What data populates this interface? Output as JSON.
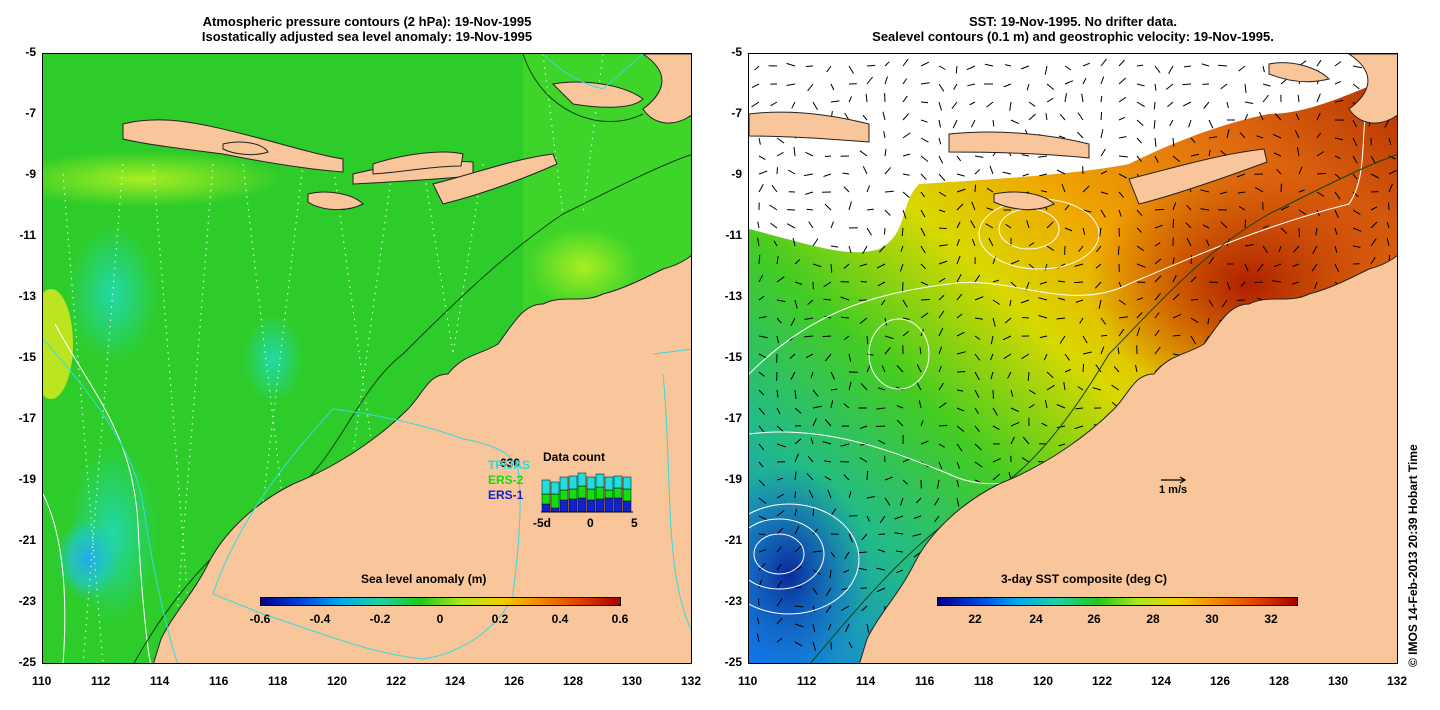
{
  "left_panel": {
    "title_line1": "Atmospheric pressure contours (2 hPa): 19-Nov-1995",
    "title_line2": "Isostatically adjusted sea level anomaly: 19-Nov-1995",
    "colorbar_title": "Sea level anomaly (m)",
    "colorbar_ticks": [
      "-0.6",
      "-0.4",
      "-0.2",
      "0",
      "0.2",
      "0.4",
      "0.6"
    ],
    "colorbar_range": [
      -0.6,
      0.6
    ],
    "data_count": {
      "title": "Data count",
      "series": [
        "TP/JAS",
        "ERS-2",
        "ERS-1"
      ],
      "series_colors": [
        "#22dddd",
        "#11dd11",
        "#1122cc"
      ],
      "count_label": "630",
      "axis_labels": [
        "-5d",
        "0",
        "5"
      ]
    }
  },
  "right_panel": {
    "title_line1": "SST: 19-Nov-1995. No drifter data.",
    "title_line2": "Sealevel contours (0.1 m) and geostrophic velocity: 19-Nov-1995.",
    "colorbar_title": "3-day SST composite (deg C)",
    "colorbar_ticks": [
      "22",
      "24",
      "26",
      "28",
      "30",
      "32"
    ],
    "colorbar_range": [
      20.5,
      32.8
    ],
    "vector_scale_label": "1 m/s"
  },
  "axes": {
    "x_ticks": [
      "110",
      "112",
      "114",
      "116",
      "118",
      "120",
      "122",
      "124",
      "126",
      "128",
      "130",
      "132"
    ],
    "y_ticks": [
      "-5",
      "-7",
      "-9",
      "-11",
      "-13",
      "-15",
      "-17",
      "-19",
      "-21",
      "-23",
      "-25"
    ],
    "lon_range": [
      110,
      132
    ],
    "lat_range": [
      -25,
      -5
    ]
  },
  "colors": {
    "land": "#f9c59a",
    "ocean_green": "#2ecc2a",
    "pressure_contour": "#ffffff",
    "boundary_line": "#33dddd",
    "track_dots": "#c8ffc8"
  },
  "credit": "© IMOS 14-Feb-2013 20:39 Hobart Time"
}
